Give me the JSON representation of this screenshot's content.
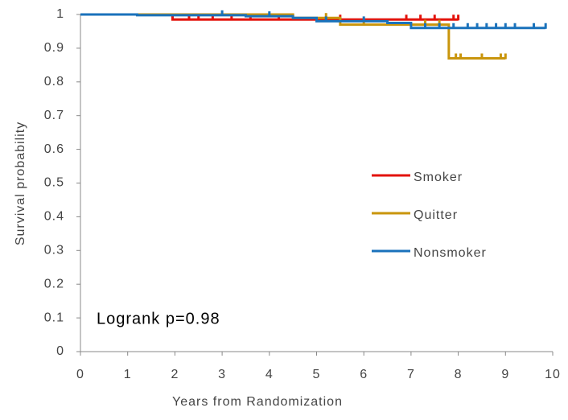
{
  "chart_data": {
    "type": "step",
    "annotation": "Logrank p=0.98",
    "x_label": "Years from Randomization",
    "y_label": "Survival probability",
    "xlim": [
      0,
      10
    ],
    "ylim": [
      0,
      1
    ],
    "xticks": [
      0,
      1,
      2,
      3,
      4,
      5,
      6,
      7,
      8,
      9,
      10
    ],
    "yticks": [
      0,
      0.1,
      0.2,
      0.3,
      0.4,
      0.5,
      0.6,
      0.7,
      0.8,
      0.9,
      1
    ],
    "series": [
      {
        "name": "Smoker",
        "color": "#e3120b",
        "x": [
          0,
          1.95,
          8.0
        ],
        "y": [
          1,
          0.985,
          0.985
        ],
        "censored": [
          2.3,
          2.5,
          2.8,
          3.2,
          3.6,
          4.2,
          5.5,
          6.9,
          7.2,
          7.5,
          7.9,
          8.0
        ]
      },
      {
        "name": "Quitter",
        "color": "#c9950c",
        "x": [
          0,
          4.5,
          5.5,
          7.8,
          9.0
        ],
        "y": [
          1,
          0.99,
          0.97,
          0.87,
          0.87
        ],
        "censored": [
          5.2,
          6.0,
          7.3,
          7.6,
          7.95,
          8.05,
          8.5,
          8.9,
          9.0
        ]
      },
      {
        "name": "Nonsmoker",
        "color": "#1a72bb",
        "x": [
          0,
          1.2,
          3.5,
          4.5,
          5.0,
          6.5,
          7.0,
          9.85
        ],
        "y": [
          1,
          0.998,
          0.995,
          0.99,
          0.98,
          0.975,
          0.96,
          0.96
        ],
        "censored": [
          3.0,
          4.0,
          5.2,
          6.0,
          7.3,
          7.6,
          7.9,
          8.2,
          8.4,
          8.6,
          8.8,
          9.0,
          9.2,
          9.6,
          9.85
        ]
      }
    ]
  }
}
